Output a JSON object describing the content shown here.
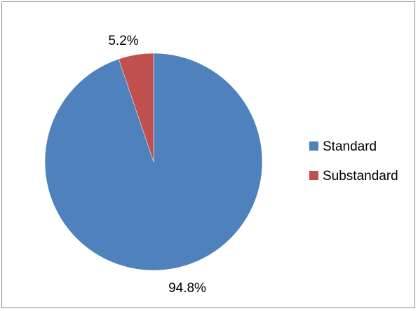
{
  "chart_data": {
    "type": "pie",
    "categories": [
      "Standard",
      "Substandard"
    ],
    "values": [
      94.8,
      5.2
    ],
    "data_labels": [
      "94.8%",
      "5.2%"
    ],
    "colors": [
      "#4f81bd",
      "#c0504d"
    ],
    "title": "",
    "legend_position": "right",
    "start_angle_deg": 0,
    "direction": "clockwise"
  }
}
